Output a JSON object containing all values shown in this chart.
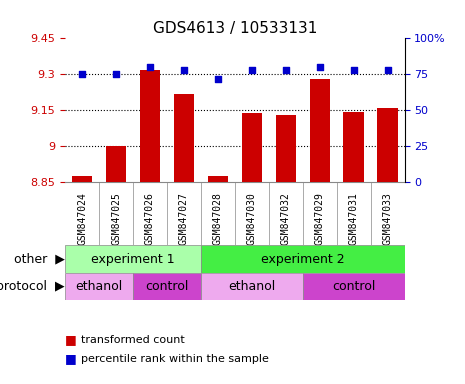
{
  "title": "GDS4613 / 10533131",
  "samples": [
    "GSM847024",
    "GSM847025",
    "GSM847026",
    "GSM847027",
    "GSM847028",
    "GSM847030",
    "GSM847032",
    "GSM847029",
    "GSM847031",
    "GSM847033"
  ],
  "bar_values": [
    8.875,
    9.0,
    9.32,
    9.22,
    8.875,
    9.14,
    9.13,
    9.28,
    9.145,
    9.16
  ],
  "dot_values": [
    75,
    75,
    80,
    78,
    72,
    78,
    78,
    80,
    78,
    78
  ],
  "ylim_left": [
    8.85,
    9.45
  ],
  "ylim_right": [
    0,
    100
  ],
  "yticks_left": [
    8.85,
    9.0,
    9.15,
    9.3,
    9.45
  ],
  "ytick_labels_left": [
    "8.85",
    "9",
    "9.15",
    "9.3",
    "9.45"
  ],
  "yticks_right": [
    0,
    25,
    50,
    75,
    100
  ],
  "ytick_labels_right": [
    "0",
    "25",
    "50",
    "75",
    "100%"
  ],
  "hlines": [
    9.0,
    9.15,
    9.3
  ],
  "bar_color": "#cc0000",
  "dot_color": "#0000cc",
  "bar_width": 0.6,
  "groups": [
    {
      "label": "experiment 1",
      "start": 0,
      "end": 4,
      "color": "#aaffaa"
    },
    {
      "label": "experiment 2",
      "start": 4,
      "end": 10,
      "color": "#44ee44"
    }
  ],
  "protocols": [
    {
      "label": "ethanol",
      "start": 0,
      "end": 2,
      "color": "#eeaaee"
    },
    {
      "label": "control",
      "start": 2,
      "end": 4,
      "color": "#cc44cc"
    },
    {
      "label": "ethanol",
      "start": 4,
      "end": 7,
      "color": "#eeaaee"
    },
    {
      "label": "control",
      "start": 7,
      "end": 10,
      "color": "#cc44cc"
    }
  ],
  "legend_items": [
    {
      "label": "transformed count",
      "color": "#cc0000"
    },
    {
      "label": "percentile rank within the sample",
      "color": "#0000cc"
    }
  ],
  "other_label": "other",
  "protocol_label": "protocol",
  "background_color": "#ffffff",
  "tick_area_color": "#cccccc",
  "border_color": "#888888",
  "title_fontsize": 11,
  "axis_tick_fontsize": 8,
  "sample_fontsize": 7,
  "group_fontsize": 9,
  "legend_fontsize": 8
}
